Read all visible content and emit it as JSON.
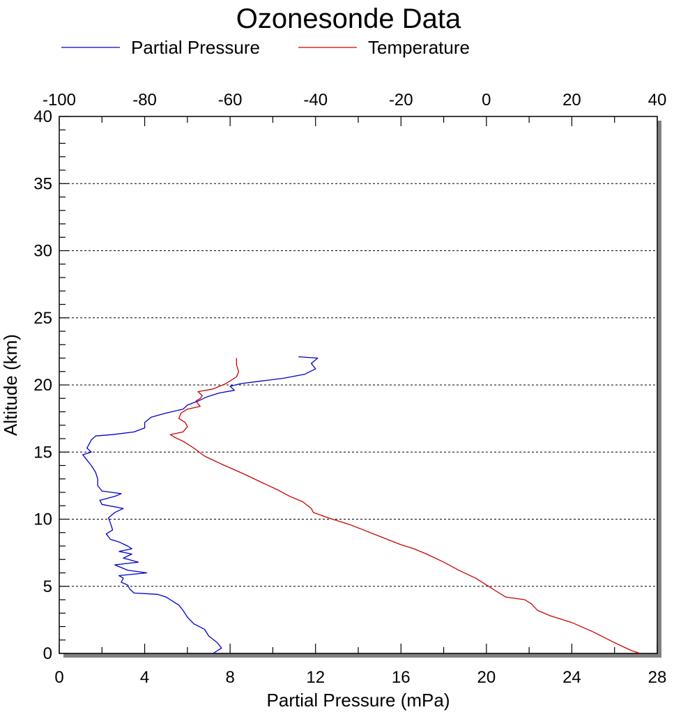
{
  "chart_data": {
    "type": "line",
    "title": "Ozonesonde Data",
    "xlabel": "Partial Pressure (mPa)",
    "x2label": "",
    "ylabel": "Altitude (km)",
    "xlim": [
      0,
      28
    ],
    "x2lim": [
      -100,
      40
    ],
    "ylim": [
      0,
      40
    ],
    "xticks": [
      "0",
      "4",
      "8",
      "12",
      "16",
      "20",
      "24",
      "28"
    ],
    "x2ticks": [
      "-100",
      "-80",
      "-60",
      "-40",
      "-20",
      "0",
      "20",
      "40"
    ],
    "yticks": [
      "0",
      "5",
      "10",
      "15",
      "20",
      "25",
      "30",
      "35",
      "40"
    ],
    "grid": {
      "horizontal_dashed": true,
      "vertical": false
    },
    "legend_position": "top",
    "series": [
      {
        "name": "Partial Pressure",
        "axis": "bottom",
        "color": "#0000cc",
        "points": [
          [
            7.2,
            0.0
          ],
          [
            7.6,
            0.4
          ],
          [
            7.4,
            0.8
          ],
          [
            7.0,
            1.3
          ],
          [
            6.8,
            1.8
          ],
          [
            6.3,
            2.2
          ],
          [
            6.0,
            2.7
          ],
          [
            5.8,
            3.2
          ],
          [
            5.6,
            3.6
          ],
          [
            5.3,
            3.9
          ],
          [
            5.0,
            4.2
          ],
          [
            4.6,
            4.4
          ],
          [
            3.5,
            4.5
          ],
          [
            3.3,
            4.8
          ],
          [
            3.2,
            5.1
          ],
          [
            2.9,
            5.3
          ],
          [
            3.0,
            5.6
          ],
          [
            2.8,
            5.8
          ],
          [
            4.1,
            6.0
          ],
          [
            3.2,
            6.2
          ],
          [
            2.6,
            6.6
          ],
          [
            3.7,
            6.8
          ],
          [
            3.0,
            7.1
          ],
          [
            3.4,
            7.4
          ],
          [
            2.8,
            7.6
          ],
          [
            3.4,
            7.8
          ],
          [
            3.2,
            8.0
          ],
          [
            2.8,
            8.3
          ],
          [
            2.4,
            8.5
          ],
          [
            2.2,
            8.9
          ],
          [
            2.5,
            9.2
          ],
          [
            2.4,
            9.7
          ],
          [
            2.3,
            10.1
          ],
          [
            2.6,
            10.5
          ],
          [
            3.0,
            10.8
          ],
          [
            2.0,
            11.1
          ],
          [
            1.9,
            11.4
          ],
          [
            2.6,
            11.7
          ],
          [
            2.9,
            11.9
          ],
          [
            2.0,
            12.1
          ],
          [
            1.8,
            12.5
          ],
          [
            1.8,
            13.0
          ],
          [
            1.7,
            13.5
          ],
          [
            1.5,
            14.0
          ],
          [
            1.3,
            14.4
          ],
          [
            1.1,
            14.8
          ],
          [
            1.5,
            15.0
          ],
          [
            1.3,
            15.3
          ],
          [
            1.4,
            15.6
          ],
          [
            1.5,
            15.9
          ],
          [
            1.7,
            16.2
          ],
          [
            2.5,
            16.3
          ],
          [
            3.5,
            16.5
          ],
          [
            4.0,
            16.8
          ],
          [
            4.0,
            17.2
          ],
          [
            4.3,
            17.6
          ],
          [
            5.0,
            17.9
          ],
          [
            5.8,
            18.2
          ],
          [
            6.0,
            18.5
          ],
          [
            6.5,
            18.8
          ],
          [
            6.9,
            19.1
          ],
          [
            7.5,
            19.4
          ],
          [
            8.2,
            19.6
          ],
          [
            8.0,
            19.9
          ],
          [
            8.5,
            20.1
          ],
          [
            9.5,
            20.3
          ],
          [
            10.5,
            20.5
          ],
          [
            11.5,
            20.8
          ],
          [
            12.0,
            21.2
          ],
          [
            11.8,
            21.6
          ],
          [
            12.1,
            22.0
          ],
          [
            11.2,
            22.1
          ]
        ]
      },
      {
        "name": "Temperature",
        "axis": "top",
        "color": "#cc0000",
        "points": [
          [
            36.0,
            0.0
          ],
          [
            34.0,
            0.2
          ],
          [
            30.0,
            0.8
          ],
          [
            25.0,
            1.6
          ],
          [
            20.0,
            2.3
          ],
          [
            15.0,
            2.8
          ],
          [
            12.0,
            3.2
          ],
          [
            10.5,
            3.7
          ],
          [
            9.0,
            4.0
          ],
          [
            4.5,
            4.2
          ],
          [
            2.5,
            4.6
          ],
          [
            0.0,
            5.1
          ],
          [
            -2.5,
            5.6
          ],
          [
            -6.5,
            6.2
          ],
          [
            -10.0,
            6.8
          ],
          [
            -14.0,
            7.4
          ],
          [
            -17.0,
            7.8
          ],
          [
            -20.0,
            8.1
          ],
          [
            -24.0,
            8.6
          ],
          [
            -28.0,
            9.1
          ],
          [
            -32.0,
            9.6
          ],
          [
            -37.0,
            10.1
          ],
          [
            -40.5,
            10.5
          ],
          [
            -41.0,
            10.8
          ],
          [
            -43.0,
            11.3
          ],
          [
            -46.0,
            11.7
          ],
          [
            -49.0,
            12.2
          ],
          [
            -53.0,
            12.8
          ],
          [
            -57.0,
            13.4
          ],
          [
            -62.0,
            14.1
          ],
          [
            -66.0,
            14.7
          ],
          [
            -68.5,
            15.3
          ],
          [
            -71.0,
            15.8
          ],
          [
            -73.0,
            16.1
          ],
          [
            -74.0,
            16.3
          ],
          [
            -71.0,
            16.5
          ],
          [
            -70.0,
            16.9
          ],
          [
            -70.5,
            17.2
          ],
          [
            -72.0,
            17.5
          ],
          [
            -71.5,
            17.9
          ],
          [
            -70.0,
            18.2
          ],
          [
            -67.0,
            18.4
          ],
          [
            -68.0,
            18.8
          ],
          [
            -67.0,
            19.0
          ],
          [
            -66.5,
            19.2
          ],
          [
            -67.5,
            19.5
          ],
          [
            -64.0,
            19.7
          ],
          [
            -61.0,
            20.1
          ],
          [
            -58.5,
            20.6
          ],
          [
            -58.0,
            21.0
          ],
          [
            -58.5,
            21.5
          ],
          [
            -58.5,
            22.0
          ]
        ]
      }
    ]
  }
}
